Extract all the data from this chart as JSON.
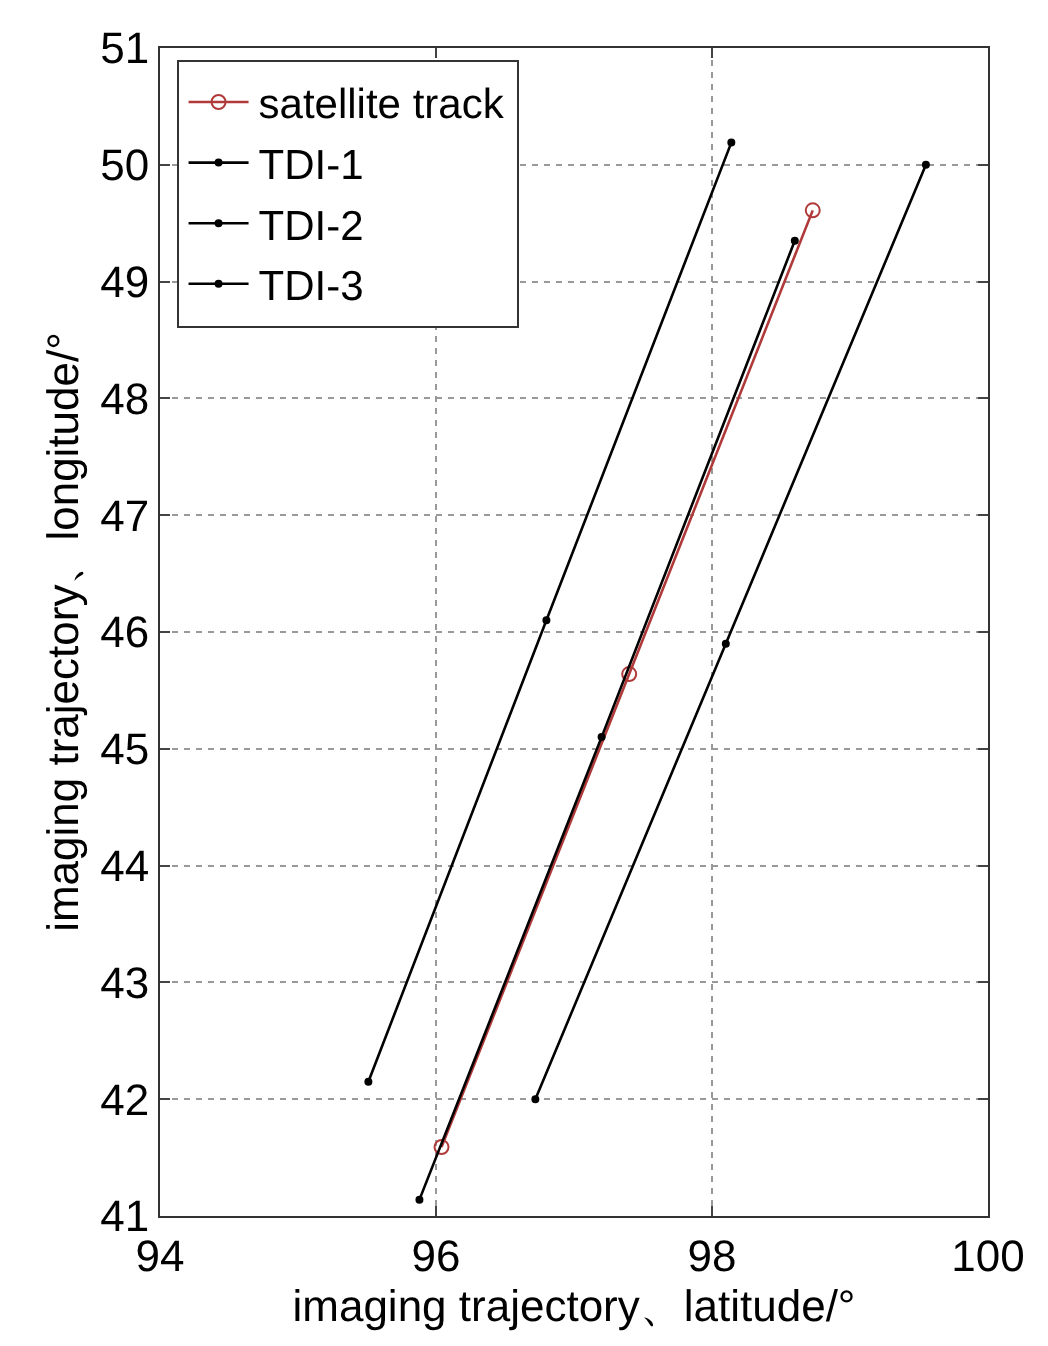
{
  "chart_data": {
    "type": "line",
    "xlabel": "imaging trajectory、latitude/°",
    "ylabel": "imaging trajectory、longitude/°",
    "xlim": [
      94,
      100
    ],
    "xticks": [
      94,
      96,
      98,
      100
    ],
    "ylim": [
      41,
      51
    ],
    "yticks": [
      41,
      42,
      43,
      44,
      45,
      46,
      47,
      48,
      49,
      50,
      51
    ],
    "grid": true,
    "legend": "top left",
    "line_style": "solid",
    "series": [
      {
        "name": "satellite track",
        "color": "#b03a3a",
        "marker": "circle",
        "x": [
          96.04,
          97.4,
          98.73
        ],
        "values": [
          41.59,
          45.64,
          49.61
        ]
      },
      {
        "name": "TDI-1",
        "color": "#000000",
        "marker": "circle",
        "x": [
          95.51,
          96.8,
          98.14
        ],
        "values": [
          42.15,
          46.1,
          50.19
        ]
      },
      {
        "name": "TDI-2",
        "color": "#000000",
        "marker": "circle",
        "x": [
          95.88,
          97.2,
          98.6
        ],
        "values": [
          41.14,
          45.1,
          49.35
        ]
      },
      {
        "name": "TDI-3",
        "color": "#000000",
        "marker": "circle",
        "x": [
          96.72,
          98.1,
          99.55
        ],
        "values": [
          42.0,
          45.9,
          50.0
        ]
      }
    ]
  }
}
